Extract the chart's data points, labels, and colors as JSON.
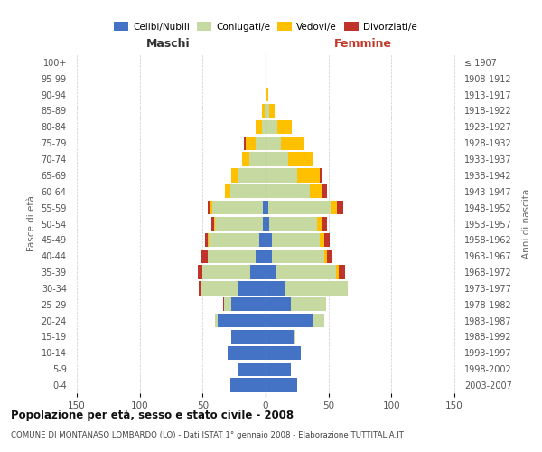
{
  "age_groups": [
    "0-4",
    "5-9",
    "10-14",
    "15-19",
    "20-24",
    "25-29",
    "30-34",
    "35-39",
    "40-44",
    "45-49",
    "50-54",
    "55-59",
    "60-64",
    "65-69",
    "70-74",
    "75-79",
    "80-84",
    "85-89",
    "90-94",
    "95-99",
    "100+"
  ],
  "birth_years": [
    "2003-2007",
    "1998-2002",
    "1993-1997",
    "1988-1992",
    "1983-1987",
    "1978-1982",
    "1973-1977",
    "1968-1972",
    "1963-1967",
    "1958-1962",
    "1953-1957",
    "1948-1952",
    "1943-1947",
    "1938-1942",
    "1933-1937",
    "1928-1932",
    "1923-1927",
    "1918-1922",
    "1913-1917",
    "1908-1912",
    "≤ 1907"
  ],
  "male": {
    "celibi": [
      28,
      22,
      30,
      27,
      38,
      27,
      22,
      12,
      8,
      5,
      2,
      2,
      0,
      0,
      0,
      0,
      0,
      0,
      0,
      0,
      0
    ],
    "coniugati": [
      0,
      0,
      0,
      0,
      2,
      6,
      30,
      38,
      38,
      40,
      38,
      40,
      28,
      22,
      13,
      8,
      3,
      1,
      0,
      0,
      0
    ],
    "vedovi": [
      0,
      0,
      0,
      0,
      0,
      0,
      0,
      0,
      0,
      1,
      1,
      2,
      4,
      5,
      6,
      8,
      5,
      2,
      0,
      0,
      0
    ],
    "divorziati": [
      0,
      0,
      0,
      0,
      0,
      1,
      1,
      4,
      6,
      2,
      2,
      2,
      0,
      0,
      0,
      1,
      0,
      0,
      0,
      0,
      0
    ]
  },
  "female": {
    "nubili": [
      25,
      20,
      28,
      22,
      37,
      20,
      15,
      8,
      5,
      5,
      3,
      2,
      0,
      0,
      0,
      0,
      0,
      0,
      0,
      0,
      0
    ],
    "coniugate": [
      0,
      0,
      0,
      2,
      10,
      28,
      50,
      48,
      42,
      38,
      38,
      50,
      35,
      25,
      18,
      12,
      9,
      3,
      1,
      0,
      0
    ],
    "vedove": [
      0,
      0,
      0,
      0,
      0,
      0,
      0,
      2,
      2,
      4,
      4,
      5,
      10,
      18,
      20,
      18,
      12,
      4,
      1,
      1,
      0
    ],
    "divorziate": [
      0,
      0,
      0,
      0,
      0,
      0,
      0,
      5,
      4,
      4,
      4,
      5,
      4,
      2,
      0,
      1,
      0,
      0,
      0,
      0,
      0
    ]
  },
  "colors": {
    "celibi": "#4472c4",
    "coniugati": "#c5d9a0",
    "vedovi": "#ffc000",
    "divorziati": "#c0332a"
  },
  "title": "Popolazione per età, sesso e stato civile - 2008",
  "subtitle": "COMUNE DI MONTANASO LOMBARDO (LO) - Dati ISTAT 1° gennaio 2008 - Elaborazione TUTTITALIA.IT",
  "xlabel_left": "Maschi",
  "xlabel_right": "Femmine",
  "ylabel_left": "Fasce di età",
  "ylabel_right": "Anni di nascita",
  "xlim": 155,
  "bg_color": "#ffffff",
  "grid_color": "#cccccc",
  "legend_labels": [
    "Celibi/Nubili",
    "Coniugati/e",
    "Vedovi/e",
    "Divorziati/e"
  ]
}
